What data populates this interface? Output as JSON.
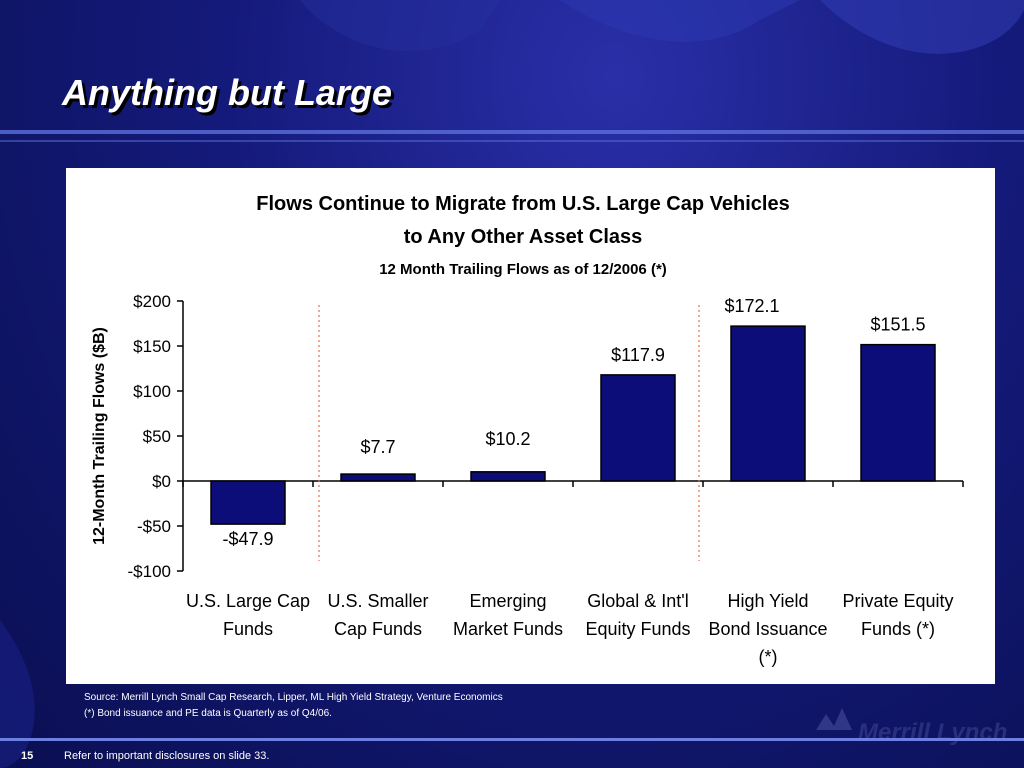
{
  "slide": {
    "title": "Anything but Large",
    "page_number": "15",
    "disclosure": "Refer to important disclosures on slide 33.",
    "source_line1": "Source: Merrill Lynch Small Cap Research, Lipper, ML High Yield Strategy, Venture Economics",
    "source_line2": "(*) Bond issuance and PE data is Quarterly as of Q4/06.",
    "logo_text": "Merrill Lynch"
  },
  "colors": {
    "bar": "#0d0d7a",
    "bar_stroke": "#000000",
    "divider": "#e07050"
  },
  "chart_data": {
    "type": "bar",
    "title_line1": "Flows Continue to Migrate from U.S. Large Cap Vehicles",
    "title_line2": "to Any Other Asset Class",
    "subtitle": "12 Month Trailing Flows as of 12/2006 (*)",
    "ylabel": "12-Month Trailing Flows ($B)",
    "ylim": [
      -100,
      200
    ],
    "yticks": [
      -100,
      -50,
      0,
      50,
      100,
      150,
      200
    ],
    "ytick_labels": [
      "-$100",
      "-$50",
      "$0",
      "$50",
      "$100",
      "$150",
      "$200"
    ],
    "categories": [
      [
        "U.S. Large Cap",
        "Funds"
      ],
      [
        "U.S. Smaller",
        "Cap Funds"
      ],
      [
        "Emerging",
        "Market Funds"
      ],
      [
        "Global & Int'l",
        "Equity Funds"
      ],
      [
        "High Yield",
        "Bond Issuance",
        "(*)"
      ],
      [
        "Private Equity",
        "Funds (*)"
      ]
    ],
    "values": [
      -47.9,
      7.7,
      10.2,
      117.9,
      172.1,
      151.5
    ],
    "data_labels": [
      "-$47.9",
      "$7.7",
      "$10.2",
      "$117.9",
      "$172.1",
      "$151.5"
    ],
    "grid": false,
    "legend": "none"
  }
}
